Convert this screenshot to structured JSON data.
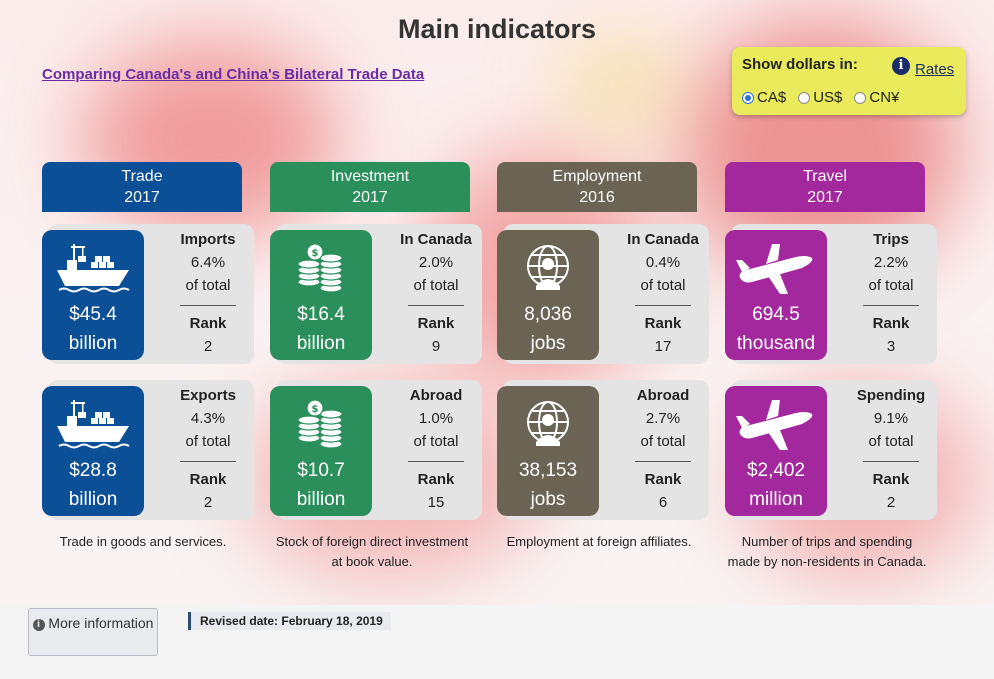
{
  "title": "Main indicators",
  "comparison_link": "Comparing Canada's and China's Bilateral Trade Data",
  "currency": {
    "label": "Show dollars in:",
    "info_icon": "info-icon",
    "rates_link": "Rates",
    "options": [
      "CA$",
      "US$",
      "CN¥"
    ],
    "selected": "CA$"
  },
  "colors": {
    "trade": "#0b4f97",
    "investment": "#2a8f5a",
    "employment": "#6b6353",
    "travel": "#a3289e",
    "currency_box": "#eaeb5c"
  },
  "columns": [
    {
      "key": "trade",
      "heading": "Trade",
      "year": "2017",
      "description": "Trade in goods and services.",
      "cards": [
        {
          "icon": "cargo-ship-icon",
          "value_line1": "$45.4",
          "value_line2": "billion",
          "stat_title": "Imports",
          "percent": "6.4%",
          "of_total": "of total",
          "rank_label": "Rank",
          "rank": "2"
        },
        {
          "icon": "cargo-ship-icon",
          "value_line1": "$28.8",
          "value_line2": "billion",
          "stat_title": "Exports",
          "percent": "4.3%",
          "of_total": "of total",
          "rank_label": "Rank",
          "rank": "2"
        }
      ]
    },
    {
      "key": "investment",
      "heading": "Investment",
      "year": "2017",
      "description": "Stock of foreign direct investment at book value.",
      "cards": [
        {
          "icon": "coin-stacks-icon",
          "value_line1": "$16.4",
          "value_line2": "billion",
          "stat_title": "In Canada",
          "percent": "2.0%",
          "of_total": "of total",
          "rank_label": "Rank",
          "rank": "9"
        },
        {
          "icon": "coin-stacks-icon",
          "value_line1": "$10.7",
          "value_line2": "billion",
          "stat_title": "Abroad",
          "percent": "1.0%",
          "of_total": "of total",
          "rank_label": "Rank",
          "rank": "15"
        }
      ]
    },
    {
      "key": "employment",
      "heading": "Employment",
      "year": "2016",
      "description": "Employment at foreign affiliates.",
      "cards": [
        {
          "icon": "globe-worker-icon",
          "value_line1": "8,036",
          "value_line2": "jobs",
          "stat_title": "In Canada",
          "percent": "0.4%",
          "of_total": "of total",
          "rank_label": "Rank",
          "rank": "17"
        },
        {
          "icon": "globe-worker-icon",
          "value_line1": "38,153",
          "value_line2": "jobs",
          "stat_title": "Abroad",
          "percent": "2.7%",
          "of_total": "of total",
          "rank_label": "Rank",
          "rank": "6"
        }
      ]
    },
    {
      "key": "travel",
      "heading": "Travel",
      "year": "2017",
      "description": "Number of trips and spending made by non-residents in Canada.",
      "cards": [
        {
          "icon": "airplane-icon",
          "value_line1": "694.5",
          "value_line2": "thousand",
          "stat_title": "Trips",
          "percent": "2.2%",
          "of_total": "of total",
          "rank_label": "Rank",
          "rank": "3"
        },
        {
          "icon": "airplane-icon",
          "value_line1": "$2,402",
          "value_line2": "million",
          "stat_title": "Spending",
          "percent": "9.1%",
          "of_total": "of total",
          "rank_label": "Rank",
          "rank": "2"
        }
      ]
    }
  ],
  "more_info": {
    "icon": "info-icon",
    "label": "More information"
  },
  "revised": "Revised date: February 18, 2019"
}
